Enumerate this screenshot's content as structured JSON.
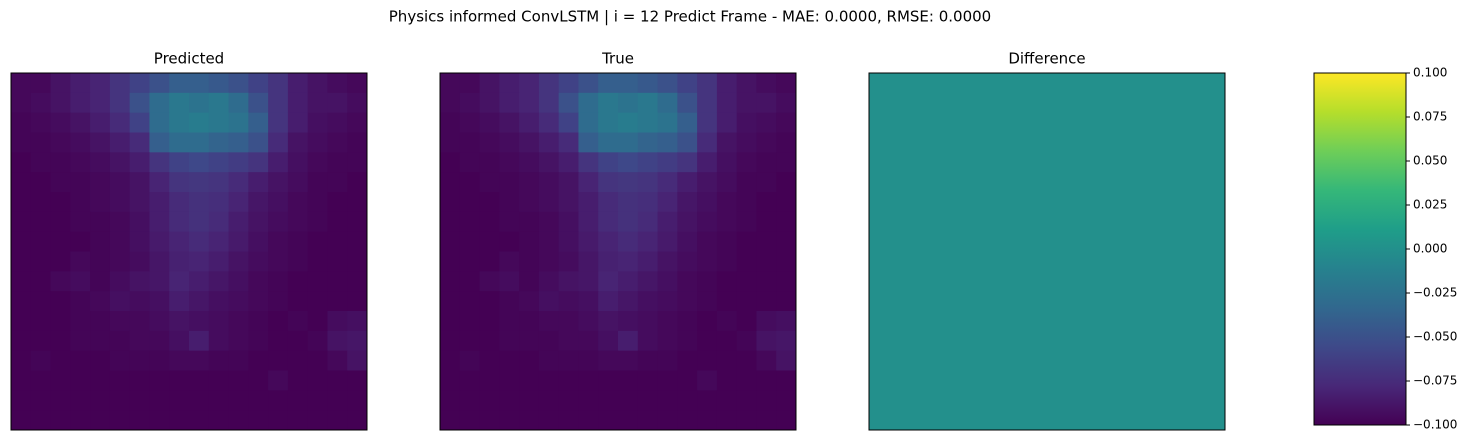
{
  "title": "Physics informed ConvLSTM | i = 12 Predict Frame - MAE: 0.0000, RMSE: 0.0000",
  "chart_data": [
    {
      "type": "heatmap",
      "title": "Predicted",
      "clim": [
        0,
        1
      ],
      "colormap": "viridis",
      "values": [
        [
          0.02,
          0.02,
          0.05,
          0.08,
          0.1,
          0.15,
          0.2,
          0.25,
          0.3,
          0.3,
          0.28,
          0.25,
          0.2,
          0.15,
          0.08,
          0.05,
          0.03,
          0.02
        ],
        [
          0.02,
          0.03,
          0.05,
          0.08,
          0.1,
          0.15,
          0.25,
          0.35,
          0.4,
          0.38,
          0.4,
          0.35,
          0.25,
          0.15,
          0.08,
          0.05,
          0.05,
          0.03
        ],
        [
          0.01,
          0.02,
          0.03,
          0.05,
          0.08,
          0.12,
          0.2,
          0.35,
          0.4,
          0.42,
          0.4,
          0.38,
          0.3,
          0.15,
          0.08,
          0.04,
          0.03,
          0.02
        ],
        [
          0.01,
          0.01,
          0.02,
          0.03,
          0.05,
          0.08,
          0.12,
          0.3,
          0.35,
          0.35,
          0.32,
          0.3,
          0.25,
          0.12,
          0.05,
          0.03,
          0.02,
          0.01
        ],
        [
          0,
          0.01,
          0.01,
          0.02,
          0.03,
          0.05,
          0.08,
          0.15,
          0.2,
          0.22,
          0.2,
          0.18,
          0.15,
          0.08,
          0.04,
          0.02,
          0.01,
          0.01
        ],
        [
          0,
          0,
          0.01,
          0.01,
          0.02,
          0.03,
          0.05,
          0.1,
          0.15,
          0.16,
          0.15,
          0.12,
          0.08,
          0.05,
          0.03,
          0.01,
          0.01,
          0
        ],
        [
          0,
          0,
          0,
          0.01,
          0.02,
          0.03,
          0.05,
          0.08,
          0.12,
          0.14,
          0.13,
          0.1,
          0.06,
          0.04,
          0.02,
          0.01,
          0,
          0
        ],
        [
          0,
          0,
          0,
          0.01,
          0.01,
          0.02,
          0.04,
          0.08,
          0.12,
          0.14,
          0.12,
          0.08,
          0.05,
          0.03,
          0.02,
          0.01,
          0,
          0
        ],
        [
          0,
          0,
          0,
          0,
          0.01,
          0.02,
          0.04,
          0.07,
          0.1,
          0.12,
          0.1,
          0.07,
          0.04,
          0.02,
          0.01,
          0,
          0,
          0
        ],
        [
          0,
          0,
          0,
          0.02,
          0.01,
          0.02,
          0.03,
          0.06,
          0.09,
          0.1,
          0.08,
          0.05,
          0.03,
          0.02,
          0.01,
          0,
          0,
          0
        ],
        [
          0,
          0,
          0.02,
          0.03,
          0.01,
          0.03,
          0.05,
          0.06,
          0.1,
          0.08,
          0.06,
          0.04,
          0.02,
          0.01,
          0,
          0,
          0,
          0
        ],
        [
          0,
          0,
          0,
          0.01,
          0.02,
          0.04,
          0.03,
          0.04,
          0.08,
          0.06,
          0.04,
          0.03,
          0.02,
          0.01,
          0,
          0,
          0,
          0
        ],
        [
          0,
          0,
          0,
          0.01,
          0.01,
          0.02,
          0.02,
          0.03,
          0.05,
          0.04,
          0.03,
          0.02,
          0.01,
          0,
          0.01,
          0,
          0.03,
          0.04
        ],
        [
          0,
          0,
          0,
          0.01,
          0.01,
          0.01,
          0.02,
          0.02,
          0.04,
          0.08,
          0.03,
          0.02,
          0.01,
          0,
          0,
          0.01,
          0.05,
          0.06
        ],
        [
          0,
          0.01,
          0,
          0,
          0,
          0.01,
          0.01,
          0.01,
          0.02,
          0.02,
          0.01,
          0.01,
          0,
          0,
          0,
          0,
          0.02,
          0.05
        ],
        [
          0,
          0,
          0,
          0,
          0,
          0,
          0,
          0,
          0,
          0,
          0,
          0,
          0,
          0.02,
          0,
          0,
          0,
          0
        ],
        [
          0,
          0,
          0,
          0,
          0,
          0,
          0,
          0,
          0,
          0,
          0,
          0,
          0,
          0,
          0,
          0,
          0,
          0
        ],
        [
          0,
          0,
          0,
          0,
          0,
          0,
          0,
          0,
          0,
          0,
          0,
          0,
          0,
          0,
          0,
          0,
          0,
          0
        ]
      ]
    },
    {
      "type": "heatmap",
      "title": "True",
      "clim": [
        0,
        1
      ],
      "colormap": "viridis",
      "values": [
        [
          0.02,
          0.02,
          0.05,
          0.08,
          0.1,
          0.15,
          0.2,
          0.25,
          0.3,
          0.3,
          0.28,
          0.25,
          0.2,
          0.15,
          0.08,
          0.05,
          0.03,
          0.02
        ],
        [
          0.02,
          0.03,
          0.05,
          0.08,
          0.1,
          0.15,
          0.25,
          0.35,
          0.4,
          0.38,
          0.4,
          0.35,
          0.25,
          0.15,
          0.08,
          0.05,
          0.05,
          0.03
        ],
        [
          0.01,
          0.02,
          0.03,
          0.05,
          0.08,
          0.12,
          0.2,
          0.35,
          0.4,
          0.42,
          0.4,
          0.38,
          0.3,
          0.15,
          0.08,
          0.04,
          0.03,
          0.02
        ],
        [
          0.01,
          0.01,
          0.02,
          0.03,
          0.05,
          0.08,
          0.12,
          0.3,
          0.35,
          0.35,
          0.32,
          0.3,
          0.25,
          0.12,
          0.05,
          0.03,
          0.02,
          0.01
        ],
        [
          0,
          0.01,
          0.01,
          0.02,
          0.03,
          0.05,
          0.08,
          0.15,
          0.2,
          0.22,
          0.2,
          0.18,
          0.15,
          0.08,
          0.04,
          0.02,
          0.01,
          0.01
        ],
        [
          0,
          0,
          0.01,
          0.01,
          0.02,
          0.03,
          0.05,
          0.1,
          0.15,
          0.16,
          0.15,
          0.12,
          0.08,
          0.05,
          0.03,
          0.01,
          0.01,
          0
        ],
        [
          0,
          0,
          0,
          0.01,
          0.02,
          0.03,
          0.05,
          0.08,
          0.12,
          0.14,
          0.13,
          0.1,
          0.06,
          0.04,
          0.02,
          0.01,
          0,
          0
        ],
        [
          0,
          0,
          0,
          0.01,
          0.01,
          0.02,
          0.04,
          0.08,
          0.12,
          0.14,
          0.12,
          0.08,
          0.05,
          0.03,
          0.02,
          0.01,
          0,
          0
        ],
        [
          0,
          0,
          0,
          0,
          0.01,
          0.02,
          0.04,
          0.07,
          0.1,
          0.12,
          0.1,
          0.07,
          0.04,
          0.02,
          0.01,
          0,
          0,
          0
        ],
        [
          0,
          0,
          0,
          0.02,
          0.01,
          0.02,
          0.03,
          0.06,
          0.09,
          0.1,
          0.08,
          0.05,
          0.03,
          0.02,
          0.01,
          0,
          0,
          0
        ],
        [
          0,
          0,
          0.02,
          0.03,
          0.01,
          0.03,
          0.05,
          0.06,
          0.1,
          0.08,
          0.06,
          0.04,
          0.02,
          0.01,
          0,
          0,
          0,
          0
        ],
        [
          0,
          0,
          0,
          0.01,
          0.02,
          0.04,
          0.03,
          0.04,
          0.08,
          0.06,
          0.04,
          0.03,
          0.02,
          0.01,
          0,
          0,
          0,
          0
        ],
        [
          0,
          0,
          0,
          0.01,
          0.01,
          0.02,
          0.02,
          0.03,
          0.05,
          0.04,
          0.03,
          0.02,
          0.01,
          0,
          0.01,
          0,
          0.03,
          0.04
        ],
        [
          0,
          0,
          0,
          0.01,
          0.01,
          0.01,
          0.02,
          0.02,
          0.04,
          0.08,
          0.03,
          0.02,
          0.01,
          0,
          0,
          0.01,
          0.05,
          0.06
        ],
        [
          0,
          0.01,
          0,
          0,
          0,
          0.01,
          0.01,
          0.01,
          0.02,
          0.02,
          0.01,
          0.01,
          0,
          0,
          0,
          0,
          0.02,
          0.05
        ],
        [
          0,
          0,
          0,
          0,
          0,
          0,
          0,
          0,
          0,
          0,
          0,
          0,
          0,
          0.02,
          0,
          0,
          0,
          0
        ],
        [
          0,
          0,
          0,
          0,
          0,
          0,
          0,
          0,
          0,
          0,
          0,
          0,
          0,
          0,
          0,
          0,
          0,
          0
        ],
        [
          0,
          0,
          0,
          0,
          0,
          0,
          0,
          0,
          0,
          0,
          0,
          0,
          0,
          0,
          0,
          0,
          0,
          0
        ]
      ]
    },
    {
      "type": "heatmap",
      "title": "Difference",
      "clim": [
        -0.1,
        0.1
      ],
      "colormap": "viridis",
      "values": [
        [
          0
        ]
      ]
    },
    {
      "type": "colorbar",
      "colormap": "viridis",
      "ylim": [
        -0.1,
        0.1
      ],
      "yticks": [
        {
          "value": -0.1,
          "label": "−0.100"
        },
        {
          "value": -0.075,
          "label": "−0.075"
        },
        {
          "value": -0.05,
          "label": "−0.050"
        },
        {
          "value": -0.025,
          "label": "−0.025"
        },
        {
          "value": 0,
          "label": "0.000"
        },
        {
          "value": 0.025,
          "label": "0.025"
        },
        {
          "value": 0.05,
          "label": "0.050"
        },
        {
          "value": 0.075,
          "label": "0.075"
        },
        {
          "value": 0.1,
          "label": "0.100"
        }
      ]
    }
  ]
}
